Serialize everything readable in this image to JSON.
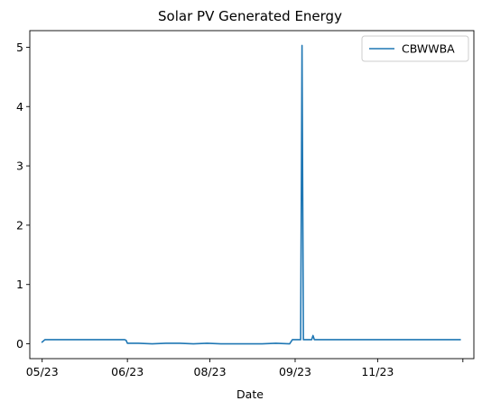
{
  "chart_data": {
    "type": "line",
    "title": "Solar PV Generated Energy",
    "xlabel": "Date",
    "ylabel": "",
    "x_tick_labels": [
      {
        "x": 0,
        "label": "05/23"
      },
      {
        "x": 31,
        "label": "06/23"
      },
      {
        "x": 61,
        "label": "08/23"
      },
      {
        "x": 92,
        "label": "09/23"
      },
      {
        "x": 122,
        "label": "11/23"
      },
      {
        "x": 153,
        "label": ""
      }
    ],
    "y_ticks": [
      0,
      1,
      2,
      3,
      4,
      5
    ],
    "xlim": [
      -4.5,
      157
    ],
    "ylim": [
      -0.25,
      5.28
    ],
    "legend": {
      "position": "top-right"
    },
    "grid": false,
    "series": [
      {
        "name": "CBWWBA",
        "color": "#1f77b4",
        "x": [
          0,
          1,
          5,
          10,
          15,
          20,
          25,
          30,
          30.5,
          31,
          35,
          40,
          45,
          50,
          55,
          60,
          65,
          70,
          75,
          80,
          85,
          90,
          91,
          92,
          94,
          94.5,
          95,
          96,
          97,
          98,
          98.5,
          99,
          100,
          105,
          110,
          115,
          120,
          125,
          130,
          135,
          140,
          145,
          150,
          152
        ],
        "y": [
          0.03,
          0.07,
          0.07,
          0.07,
          0.07,
          0.07,
          0.07,
          0.07,
          0.06,
          0.01,
          0.01,
          0.0,
          0.01,
          0.01,
          0.0,
          0.01,
          0.0,
          0.0,
          0.0,
          0.0,
          0.01,
          0.0,
          0.07,
          0.07,
          0.07,
          5.03,
          0.07,
          0.07,
          0.07,
          0.07,
          0.14,
          0.07,
          0.07,
          0.07,
          0.07,
          0.07,
          0.07,
          0.07,
          0.07,
          0.07,
          0.07,
          0.07,
          0.07,
          0.07
        ]
      }
    ]
  }
}
